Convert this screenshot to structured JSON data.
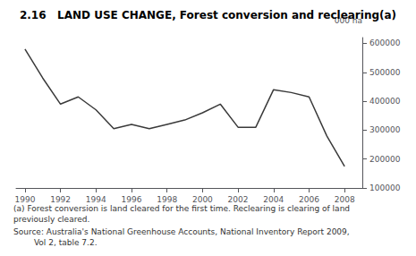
{
  "chart_data": {
    "type": "line",
    "title": "2.16   LAND USE CHANGE, Forest conversion and reclearing(a)",
    "ylabel": "'000 ha",
    "x": [
      1990,
      1991,
      1992,
      1993,
      1994,
      1995,
      1996,
      1997,
      1998,
      1999,
      2000,
      2001,
      2002,
      2003,
      2004,
      2005,
      2006,
      2007,
      2008
    ],
    "values": [
      580000,
      480000,
      390000,
      415000,
      370000,
      305000,
      320000,
      305000,
      320000,
      335000,
      360000,
      390000,
      310000,
      310000,
      440000,
      430000,
      415000,
      280000,
      175000
    ],
    "color": "#3a3a3a",
    "xlim": [
      1989.5,
      2009.0
    ],
    "xticks": [
      1990,
      1992,
      1994,
      1996,
      1998,
      2000,
      2002,
      2004,
      2006,
      2008
    ],
    "ylim": [
      100000,
      620000
    ],
    "yticks": [
      100000,
      200000,
      300000,
      400000,
      500000,
      600000
    ],
    "grid": false,
    "annotations": [
      "(a) Forest conversion is land cleared for the first time. Reclearing is clearing of land\npreviously cleared.",
      "Source: Australia's National Greenhouse Accounts, National Inventory Report 2009,\n        Vol 2, table 7.2."
    ]
  }
}
